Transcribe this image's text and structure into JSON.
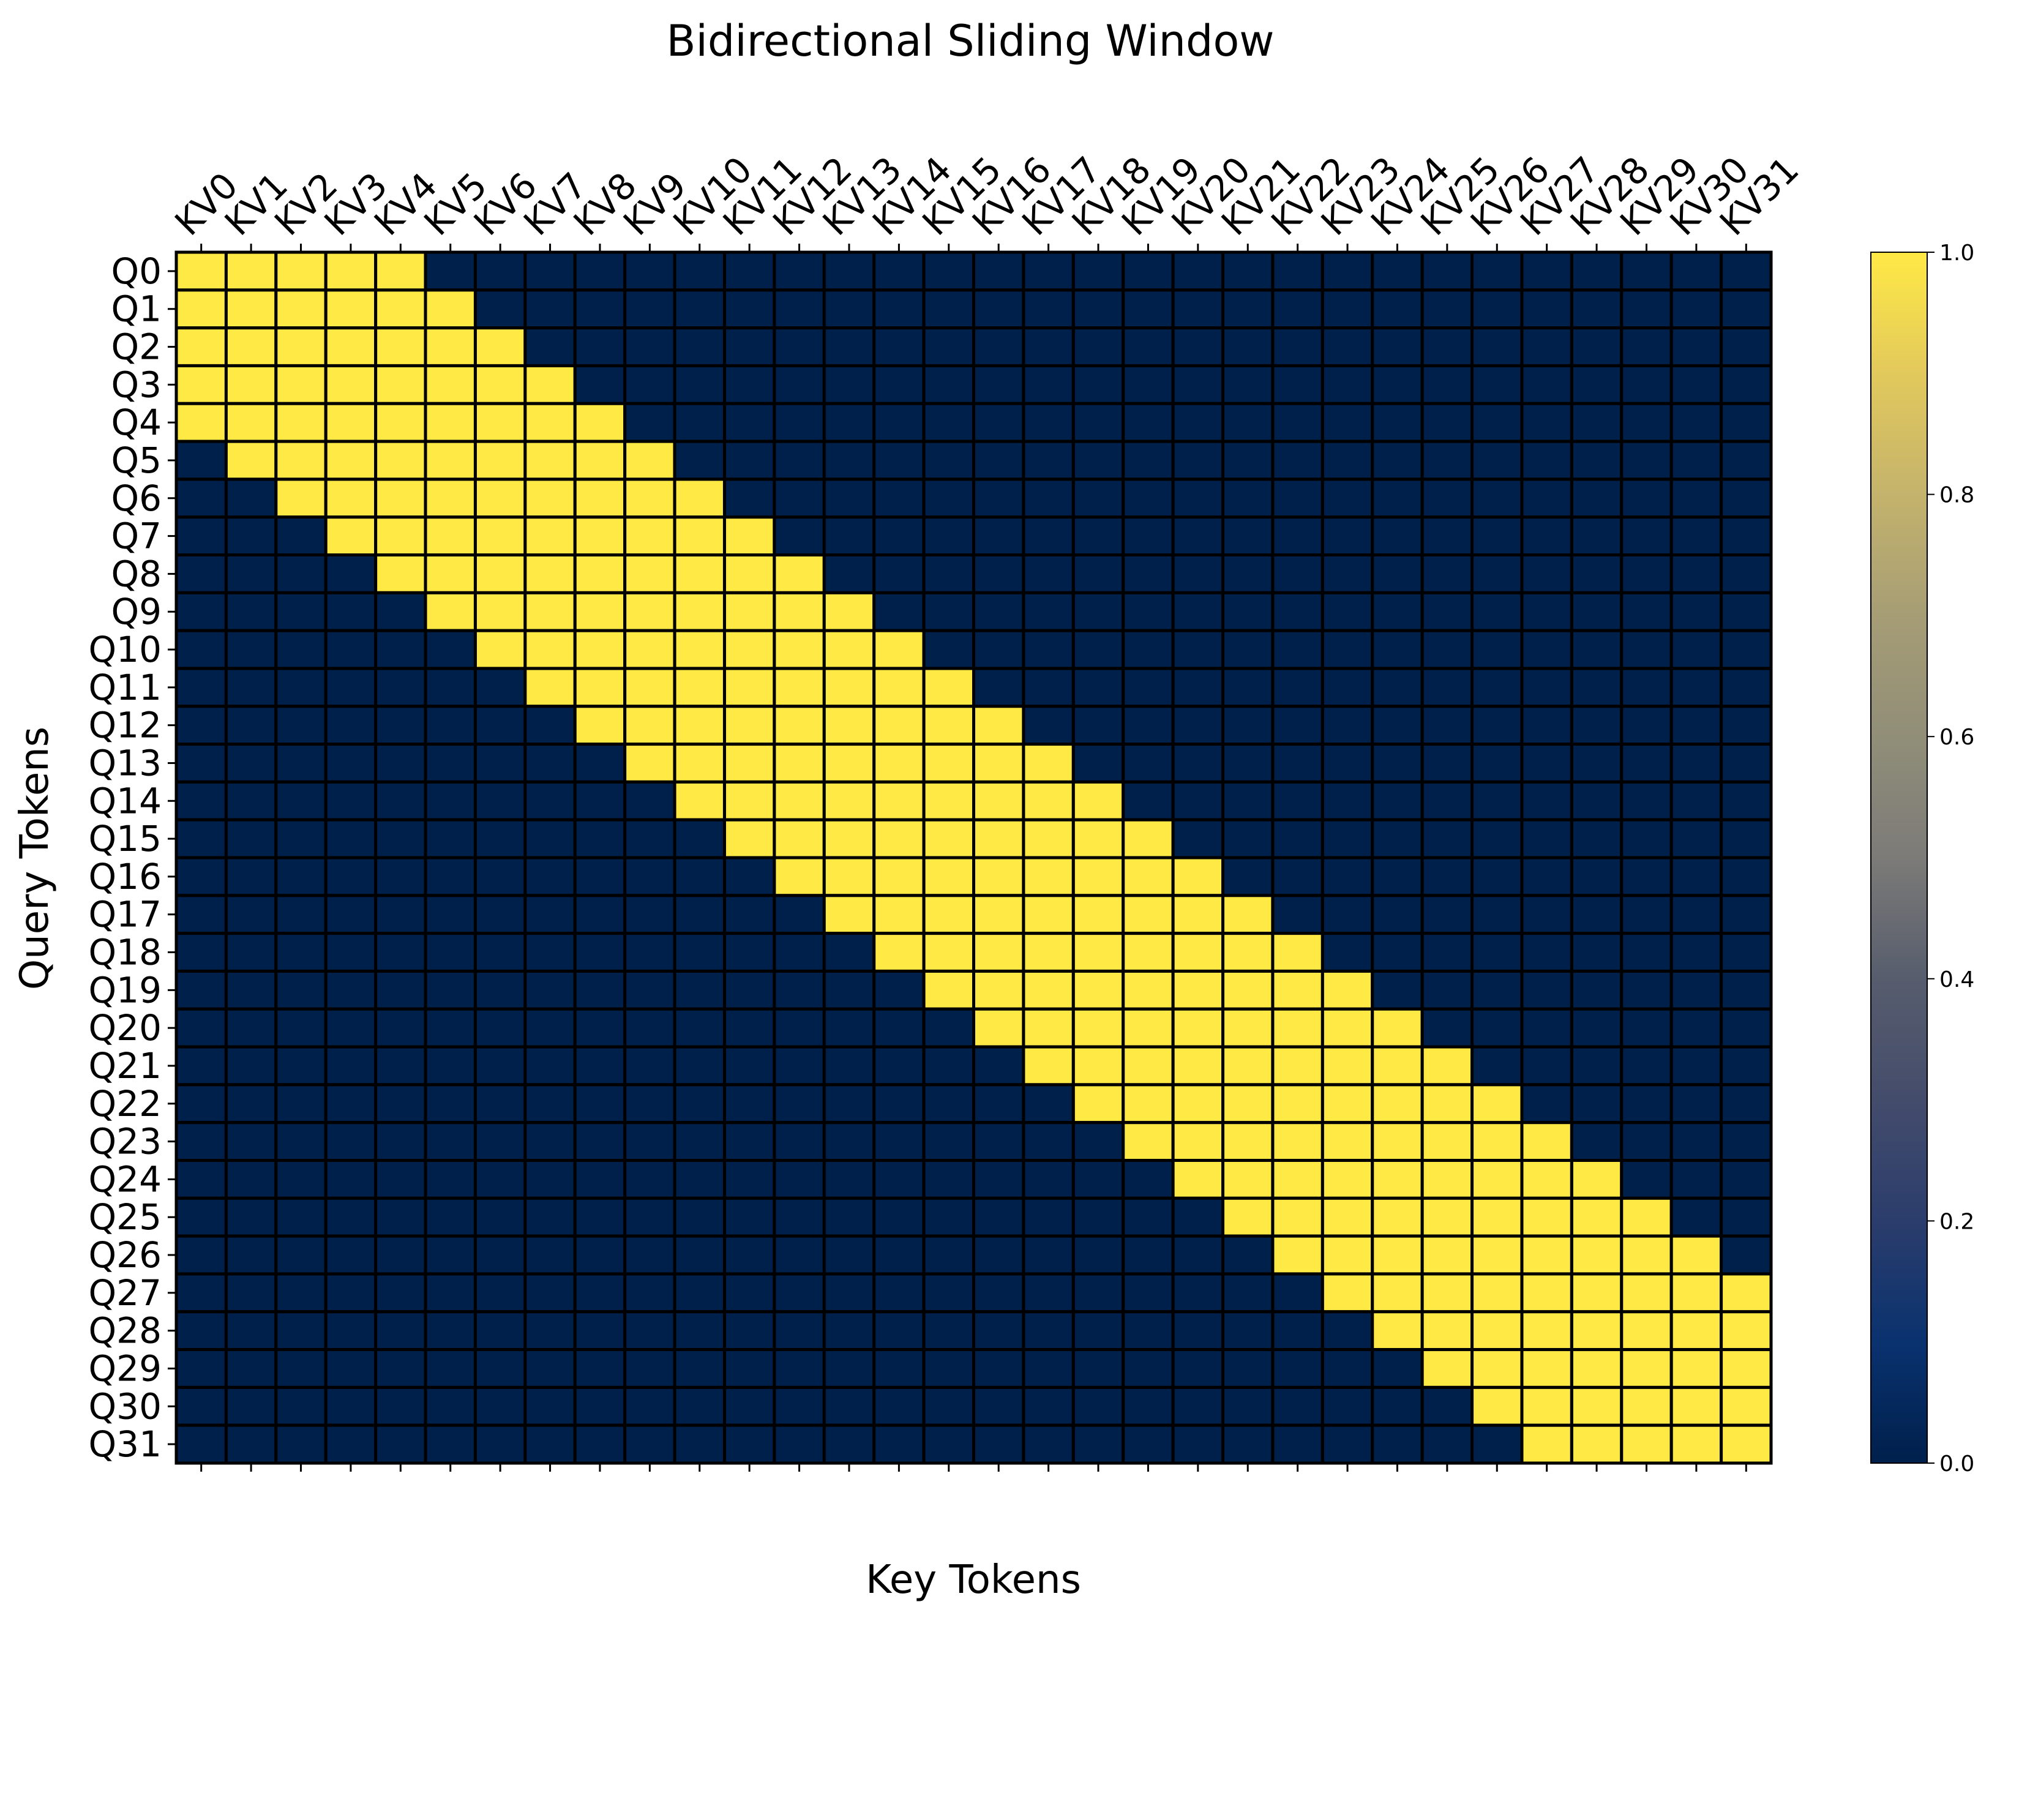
{
  "chart_data": {
    "type": "heatmap",
    "title": "Bidirectional Sliding Window",
    "xlabel": "Key Tokens",
    "ylabel": "Query Tokens",
    "x_ticklabels": [
      "KV0",
      "KV1",
      "KV2",
      "KV3",
      "KV4",
      "KV5",
      "KV6",
      "KV7",
      "KV8",
      "KV9",
      "KV10",
      "KV11",
      "KV12",
      "KV13",
      "KV14",
      "KV15",
      "KV16",
      "KV17",
      "KV18",
      "KV19",
      "KV20",
      "KV21",
      "KV22",
      "KV23",
      "KV24",
      "KV25",
      "KV26",
      "KV27",
      "KV28",
      "KV29",
      "KV30",
      "KV31"
    ],
    "y_ticklabels": [
      "Q0",
      "Q1",
      "Q2",
      "Q3",
      "Q4",
      "Q5",
      "Q6",
      "Q7",
      "Q8",
      "Q9",
      "Q10",
      "Q11",
      "Q12",
      "Q13",
      "Q14",
      "Q15",
      "Q16",
      "Q17",
      "Q18",
      "Q19",
      "Q20",
      "Q21",
      "Q22",
      "Q23",
      "Q24",
      "Q25",
      "Q26",
      "Q27",
      "Q28",
      "Q29",
      "Q30",
      "Q31"
    ],
    "values": [
      [
        1,
        1,
        1,
        1,
        1,
        0,
        0,
        0,
        0,
        0,
        0,
        0,
        0,
        0,
        0,
        0,
        0,
        0,
        0,
        0,
        0,
        0,
        0,
        0,
        0,
        0,
        0,
        0,
        0,
        0,
        0,
        0
      ],
      [
        1,
        1,
        1,
        1,
        1,
        1,
        0,
        0,
        0,
        0,
        0,
        0,
        0,
        0,
        0,
        0,
        0,
        0,
        0,
        0,
        0,
        0,
        0,
        0,
        0,
        0,
        0,
        0,
        0,
        0,
        0,
        0
      ],
      [
        1,
        1,
        1,
        1,
        1,
        1,
        1,
        0,
        0,
        0,
        0,
        0,
        0,
        0,
        0,
        0,
        0,
        0,
        0,
        0,
        0,
        0,
        0,
        0,
        0,
        0,
        0,
        0,
        0,
        0,
        0,
        0
      ],
      [
        1,
        1,
        1,
        1,
        1,
        1,
        1,
        1,
        0,
        0,
        0,
        0,
        0,
        0,
        0,
        0,
        0,
        0,
        0,
        0,
        0,
        0,
        0,
        0,
        0,
        0,
        0,
        0,
        0,
        0,
        0,
        0
      ],
      [
        1,
        1,
        1,
        1,
        1,
        1,
        1,
        1,
        1,
        0,
        0,
        0,
        0,
        0,
        0,
        0,
        0,
        0,
        0,
        0,
        0,
        0,
        0,
        0,
        0,
        0,
        0,
        0,
        0,
        0,
        0,
        0
      ],
      [
        0,
        1,
        1,
        1,
        1,
        1,
        1,
        1,
        1,
        1,
        0,
        0,
        0,
        0,
        0,
        0,
        0,
        0,
        0,
        0,
        0,
        0,
        0,
        0,
        0,
        0,
        0,
        0,
        0,
        0,
        0,
        0
      ],
      [
        0,
        0,
        1,
        1,
        1,
        1,
        1,
        1,
        1,
        1,
        1,
        0,
        0,
        0,
        0,
        0,
        0,
        0,
        0,
        0,
        0,
        0,
        0,
        0,
        0,
        0,
        0,
        0,
        0,
        0,
        0,
        0
      ],
      [
        0,
        0,
        0,
        1,
        1,
        1,
        1,
        1,
        1,
        1,
        1,
        1,
        0,
        0,
        0,
        0,
        0,
        0,
        0,
        0,
        0,
        0,
        0,
        0,
        0,
        0,
        0,
        0,
        0,
        0,
        0,
        0
      ],
      [
        0,
        0,
        0,
        0,
        1,
        1,
        1,
        1,
        1,
        1,
        1,
        1,
        1,
        0,
        0,
        0,
        0,
        0,
        0,
        0,
        0,
        0,
        0,
        0,
        0,
        0,
        0,
        0,
        0,
        0,
        0,
        0
      ],
      [
        0,
        0,
        0,
        0,
        0,
        1,
        1,
        1,
        1,
        1,
        1,
        1,
        1,
        1,
        0,
        0,
        0,
        0,
        0,
        0,
        0,
        0,
        0,
        0,
        0,
        0,
        0,
        0,
        0,
        0,
        0,
        0
      ],
      [
        0,
        0,
        0,
        0,
        0,
        0,
        1,
        1,
        1,
        1,
        1,
        1,
        1,
        1,
        1,
        0,
        0,
        0,
        0,
        0,
        0,
        0,
        0,
        0,
        0,
        0,
        0,
        0,
        0,
        0,
        0,
        0
      ],
      [
        0,
        0,
        0,
        0,
        0,
        0,
        0,
        1,
        1,
        1,
        1,
        1,
        1,
        1,
        1,
        1,
        0,
        0,
        0,
        0,
        0,
        0,
        0,
        0,
        0,
        0,
        0,
        0,
        0,
        0,
        0,
        0
      ],
      [
        0,
        0,
        0,
        0,
        0,
        0,
        0,
        0,
        1,
        1,
        1,
        1,
        1,
        1,
        1,
        1,
        1,
        0,
        0,
        0,
        0,
        0,
        0,
        0,
        0,
        0,
        0,
        0,
        0,
        0,
        0,
        0
      ],
      [
        0,
        0,
        0,
        0,
        0,
        0,
        0,
        0,
        0,
        1,
        1,
        1,
        1,
        1,
        1,
        1,
        1,
        1,
        0,
        0,
        0,
        0,
        0,
        0,
        0,
        0,
        0,
        0,
        0,
        0,
        0,
        0
      ],
      [
        0,
        0,
        0,
        0,
        0,
        0,
        0,
        0,
        0,
        0,
        1,
        1,
        1,
        1,
        1,
        1,
        1,
        1,
        1,
        0,
        0,
        0,
        0,
        0,
        0,
        0,
        0,
        0,
        0,
        0,
        0,
        0
      ],
      [
        0,
        0,
        0,
        0,
        0,
        0,
        0,
        0,
        0,
        0,
        0,
        1,
        1,
        1,
        1,
        1,
        1,
        1,
        1,
        1,
        0,
        0,
        0,
        0,
        0,
        0,
        0,
        0,
        0,
        0,
        0,
        0
      ],
      [
        0,
        0,
        0,
        0,
        0,
        0,
        0,
        0,
        0,
        0,
        0,
        0,
        1,
        1,
        1,
        1,
        1,
        1,
        1,
        1,
        1,
        0,
        0,
        0,
        0,
        0,
        0,
        0,
        0,
        0,
        0,
        0
      ],
      [
        0,
        0,
        0,
        0,
        0,
        0,
        0,
        0,
        0,
        0,
        0,
        0,
        0,
        1,
        1,
        1,
        1,
        1,
        1,
        1,
        1,
        1,
        0,
        0,
        0,
        0,
        0,
        0,
        0,
        0,
        0,
        0
      ],
      [
        0,
        0,
        0,
        0,
        0,
        0,
        0,
        0,
        0,
        0,
        0,
        0,
        0,
        0,
        1,
        1,
        1,
        1,
        1,
        1,
        1,
        1,
        1,
        0,
        0,
        0,
        0,
        0,
        0,
        0,
        0,
        0
      ],
      [
        0,
        0,
        0,
        0,
        0,
        0,
        0,
        0,
        0,
        0,
        0,
        0,
        0,
        0,
        0,
        1,
        1,
        1,
        1,
        1,
        1,
        1,
        1,
        1,
        0,
        0,
        0,
        0,
        0,
        0,
        0,
        0
      ],
      [
        0,
        0,
        0,
        0,
        0,
        0,
        0,
        0,
        0,
        0,
        0,
        0,
        0,
        0,
        0,
        0,
        1,
        1,
        1,
        1,
        1,
        1,
        1,
        1,
        1,
        0,
        0,
        0,
        0,
        0,
        0,
        0
      ],
      [
        0,
        0,
        0,
        0,
        0,
        0,
        0,
        0,
        0,
        0,
        0,
        0,
        0,
        0,
        0,
        0,
        0,
        1,
        1,
        1,
        1,
        1,
        1,
        1,
        1,
        1,
        0,
        0,
        0,
        0,
        0,
        0
      ],
      [
        0,
        0,
        0,
        0,
        0,
        0,
        0,
        0,
        0,
        0,
        0,
        0,
        0,
        0,
        0,
        0,
        0,
        0,
        1,
        1,
        1,
        1,
        1,
        1,
        1,
        1,
        1,
        0,
        0,
        0,
        0,
        0
      ],
      [
        0,
        0,
        0,
        0,
        0,
        0,
        0,
        0,
        0,
        0,
        0,
        0,
        0,
        0,
        0,
        0,
        0,
        0,
        0,
        1,
        1,
        1,
        1,
        1,
        1,
        1,
        1,
        1,
        0,
        0,
        0,
        0
      ],
      [
        0,
        0,
        0,
        0,
        0,
        0,
        0,
        0,
        0,
        0,
        0,
        0,
        0,
        0,
        0,
        0,
        0,
        0,
        0,
        0,
        1,
        1,
        1,
        1,
        1,
        1,
        1,
        1,
        1,
        0,
        0,
        0
      ],
      [
        0,
        0,
        0,
        0,
        0,
        0,
        0,
        0,
        0,
        0,
        0,
        0,
        0,
        0,
        0,
        0,
        0,
        0,
        0,
        0,
        0,
        1,
        1,
        1,
        1,
        1,
        1,
        1,
        1,
        1,
        0,
        0
      ],
      [
        0,
        0,
        0,
        0,
        0,
        0,
        0,
        0,
        0,
        0,
        0,
        0,
        0,
        0,
        0,
        0,
        0,
        0,
        0,
        0,
        0,
        0,
        1,
        1,
        1,
        1,
        1,
        1,
        1,
        1,
        1,
        0
      ],
      [
        0,
        0,
        0,
        0,
        0,
        0,
        0,
        0,
        0,
        0,
        0,
        0,
        0,
        0,
        0,
        0,
        0,
        0,
        0,
        0,
        0,
        0,
        0,
        1,
        1,
        1,
        1,
        1,
        1,
        1,
        1,
        1
      ],
      [
        0,
        0,
        0,
        0,
        0,
        0,
        0,
        0,
        0,
        0,
        0,
        0,
        0,
        0,
        0,
        0,
        0,
        0,
        0,
        0,
        0,
        0,
        0,
        0,
        1,
        1,
        1,
        1,
        1,
        1,
        1,
        1
      ],
      [
        0,
        0,
        0,
        0,
        0,
        0,
        0,
        0,
        0,
        0,
        0,
        0,
        0,
        0,
        0,
        0,
        0,
        0,
        0,
        0,
        0,
        0,
        0,
        0,
        0,
        1,
        1,
        1,
        1,
        1,
        1,
        1
      ],
      [
        0,
        0,
        0,
        0,
        0,
        0,
        0,
        0,
        0,
        0,
        0,
        0,
        0,
        0,
        0,
        0,
        0,
        0,
        0,
        0,
        0,
        0,
        0,
        0,
        0,
        0,
        1,
        1,
        1,
        1,
        1,
        1
      ],
      [
        0,
        0,
        0,
        0,
        0,
        0,
        0,
        0,
        0,
        0,
        0,
        0,
        0,
        0,
        0,
        0,
        0,
        0,
        0,
        0,
        0,
        0,
        0,
        0,
        0,
        0,
        0,
        1,
        1,
        1,
        1,
        1
      ]
    ],
    "colormap": "cividis",
    "vmin": 0.0,
    "vmax": 1.0,
    "colors": {
      "low": "#00204c",
      "high": "#ffe945"
    },
    "colorbar": {
      "ticks": [
        0.0,
        0.2,
        0.4,
        0.6,
        0.8,
        1.0
      ],
      "ticklabels": [
        "0.0",
        "0.2",
        "0.4",
        "0.6",
        "0.8",
        "1.0"
      ]
    },
    "grid": true,
    "x_tick_position": "top"
  }
}
